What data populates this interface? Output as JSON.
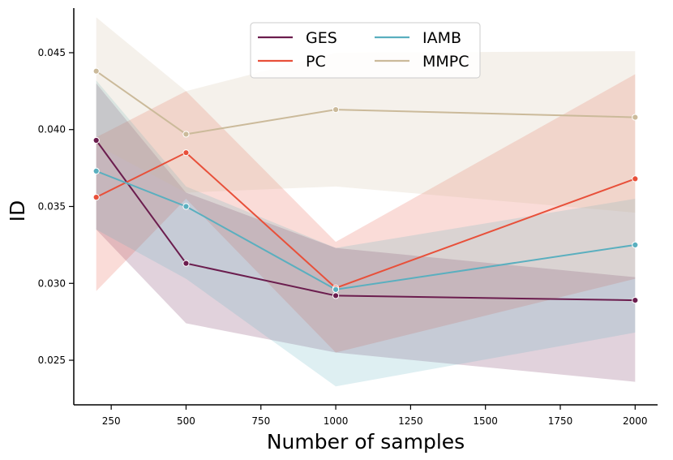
{
  "chart_data": {
    "type": "line",
    "title": "",
    "xlabel": "Number of samples",
    "ylabel": "ID",
    "xlim": [
      125,
      2075
    ],
    "ylim": [
      0.0221,
      0.0479
    ],
    "x_ticks": [
      250,
      500,
      750,
      1000,
      1250,
      1500,
      1750,
      2000
    ],
    "y_ticks": [
      0.025,
      0.03,
      0.035,
      0.04,
      0.045
    ],
    "x_tick_labels": [
      "250",
      "500",
      "750",
      "1000",
      "1250",
      "1500",
      "1750",
      "2000"
    ],
    "y_tick_labels": [
      "0.025",
      "0.030",
      "0.035",
      "0.040",
      "0.045"
    ],
    "grid": false,
    "legend_position": "top-center",
    "x": [
      200,
      500,
      1000,
      2000
    ],
    "series": [
      {
        "name": "GES",
        "color": "#6b1d4e",
        "values": [
          0.0393,
          0.0313,
          0.0292,
          0.0289
        ],
        "lower": [
          0.0335,
          0.0274,
          0.0255,
          0.0236
        ],
        "upper": [
          0.043,
          0.0359,
          0.0323,
          0.0304
        ]
      },
      {
        "name": "PC",
        "color": "#e8503a",
        "values": [
          0.0356,
          0.0385,
          0.0297,
          0.0368
        ],
        "lower": [
          0.0295,
          0.0355,
          0.0255,
          0.0303
        ],
        "upper": [
          0.0395,
          0.0425,
          0.0327,
          0.0436
        ]
      },
      {
        "name": "IAMB",
        "color": "#5aafbf",
        "values": [
          0.0373,
          0.035,
          0.0296,
          0.0325
        ],
        "lower": [
          0.0335,
          0.0303,
          0.0233,
          0.0268
        ],
        "upper": [
          0.0432,
          0.0363,
          0.0323,
          0.0355
        ]
      },
      {
        "name": "MMPC",
        "color": "#cbba9a",
        "values": [
          0.0438,
          0.0397,
          0.0413,
          0.0408
        ],
        "lower": [
          0.039,
          0.0359,
          0.0363,
          0.0346
        ],
        "upper": [
          0.0473,
          0.0425,
          0.045,
          0.0451
        ]
      }
    ]
  }
}
